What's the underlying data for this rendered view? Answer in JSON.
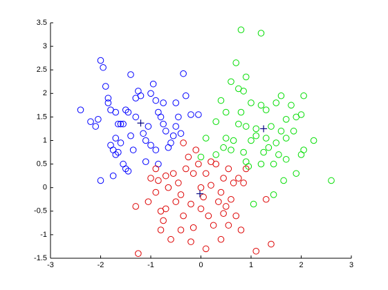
{
  "chart_data": {
    "type": "scatter",
    "xlim": [
      -3,
      3
    ],
    "ylim": [
      -1.5,
      3.5
    ],
    "xticks": [
      -3,
      -2,
      -1,
      0,
      1,
      2,
      3
    ],
    "yticks": [
      -1.5,
      -1,
      -0.5,
      0,
      0.5,
      1,
      1.5,
      2,
      2.5,
      3,
      3.5
    ],
    "series": [
      {
        "color": "#0000ff",
        "marker": "o",
        "x": [
          -2.4,
          -2.2,
          -2.1,
          -2.05,
          -2.0,
          -1.95,
          -1.9,
          -1.85,
          -1.85,
          -1.8,
          -1.7,
          -1.65,
          -1.6,
          -1.55,
          -1.5,
          -1.45,
          -1.8,
          -1.75,
          -1.7,
          -1.65,
          -1.6,
          -1.55,
          -1.5,
          -1.45,
          -1.4,
          -1.35,
          -1.3,
          -1.25,
          -1.2,
          -1.15,
          -1.1,
          -1.05,
          -1.0,
          -0.95,
          -0.9,
          -0.85,
          -0.8,
          -0.75,
          -0.7,
          -0.65,
          -0.6,
          -0.55,
          -0.5,
          -0.45,
          -0.4,
          -0.35,
          -0.3,
          -0.2,
          -0.05,
          -2.0,
          -1.75,
          -0.9,
          -1.0,
          -1.3,
          -0.75,
          -1.7,
          -1.1,
          -0.85,
          -1.4,
          -0.5
        ],
        "values": [
          1.65,
          1.4,
          1.3,
          1.45,
          2.7,
          2.55,
          2.15,
          1.9,
          1.8,
          1.65,
          1.6,
          1.35,
          1.35,
          1.35,
          1.65,
          1.6,
          0.9,
          0.8,
          0.7,
          0.75,
          0.95,
          0.5,
          0.4,
          0.35,
          1.1,
          0.8,
          1.9,
          2.05,
          1.95,
          1.15,
          1.0,
          1.3,
          0.9,
          2.2,
          1.85,
          1.6,
          1.5,
          1.35,
          1.2,
          0.85,
          0.95,
          1.1,
          1.3,
          1.5,
          1.15,
          2.42,
          1.95,
          1.55,
          1.55,
          0.15,
          0.25,
          0.8,
          2.0,
          1.5,
          1.8,
          1.05,
          0.55,
          0.5,
          2.4,
          1.8
        ]
      },
      {
        "color": "#00dd00",
        "marker": "o",
        "x": [
          0.8,
          1.2,
          0.7,
          0.9,
          0.6,
          0.75,
          0.85,
          1.6,
          2.05,
          0.4,
          1.0,
          1.2,
          1.5,
          1.8,
          0.5,
          0.8,
          1.3,
          1.9,
          2.0,
          1.7,
          0.3,
          0.75,
          0.9,
          1.1,
          1.4,
          1.6,
          1.85,
          0.5,
          0.65,
          1.0,
          1.3,
          1.5,
          1.7,
          0.45,
          0.6,
          0.85,
          1.25,
          1.55,
          2.25,
          2.05,
          2.0,
          0.9,
          1.2,
          1.45,
          1.7,
          0.95,
          0.3,
          0.0,
          0.1,
          1.9,
          2.6,
          1.65,
          1.45,
          1.05,
          1.1,
          1.35
        ],
        "values": [
          3.35,
          3.28,
          2.65,
          2.35,
          2.25,
          2.1,
          2.05,
          1.95,
          1.95,
          1.85,
          1.8,
          1.75,
          1.8,
          1.75,
          1.6,
          1.6,
          1.65,
          1.5,
          1.55,
          1.45,
          1.4,
          1.35,
          1.3,
          1.25,
          1.3,
          1.2,
          1.2,
          1.05,
          1.0,
          1.0,
          1.05,
          0.95,
          1.05,
          0.85,
          0.8,
          0.75,
          0.75,
          0.7,
          1.0,
          0.8,
          0.7,
          0.55,
          0.5,
          0.5,
          0.6,
          0.45,
          0.7,
          0.65,
          1.05,
          0.3,
          0.15,
          0.15,
          -0.15,
          -0.35,
          1.1,
          0.85
        ]
      },
      {
        "color": "#dd0000",
        "marker": "o",
        "x": [
          -1.25,
          -1.3,
          -1.05,
          -1.0,
          -0.9,
          -0.85,
          -0.8,
          -0.8,
          -0.75,
          -0.7,
          -0.65,
          -0.6,
          -0.55,
          -0.5,
          -0.45,
          -0.4,
          -0.35,
          -0.3,
          -0.25,
          -0.2,
          -0.15,
          -0.1,
          -0.05,
          0.0,
          0.05,
          0.1,
          0.15,
          0.2,
          0.25,
          0.3,
          0.35,
          0.4,
          0.45,
          0.5,
          0.55,
          0.6,
          0.65,
          0.7,
          0.75,
          0.8,
          0.85,
          0.9,
          -0.2,
          0.1,
          -0.4,
          0.4,
          0.55,
          1.1,
          1.4,
          1.3,
          -0.7,
          -0.9,
          -0.35,
          0.2,
          -0.15,
          0.0,
          0.45
        ],
        "values": [
          -1.4,
          -0.4,
          -0.3,
          0.2,
          -0.1,
          0.15,
          -0.5,
          -0.9,
          -0.7,
          0.25,
          0.0,
          -1.1,
          0.3,
          -0.3,
          0.1,
          -0.15,
          -0.6,
          0.4,
          0.65,
          -0.35,
          0.3,
          0.8,
          0.5,
          -0.45,
          -0.2,
          0.3,
          -0.6,
          0.05,
          -0.8,
          0.5,
          -0.3,
          -0.1,
          0.2,
          -0.4,
          0.4,
          -0.25,
          0.1,
          -0.6,
          0.2,
          -0.9,
          0.1,
          0.4,
          -1.15,
          -1.3,
          -0.9,
          -1.1,
          -0.8,
          -1.35,
          -1.2,
          -0.25,
          -0.45,
          0.4,
          0.95,
          0.55,
          -0.85,
          0.0,
          -0.55
        ]
      },
      {
        "color": "#000080",
        "marker": "+",
        "x": [
          -1.2,
          1.25,
          -0.02
        ],
        "values": [
          1.37,
          1.25,
          -0.13
        ]
      }
    ]
  }
}
